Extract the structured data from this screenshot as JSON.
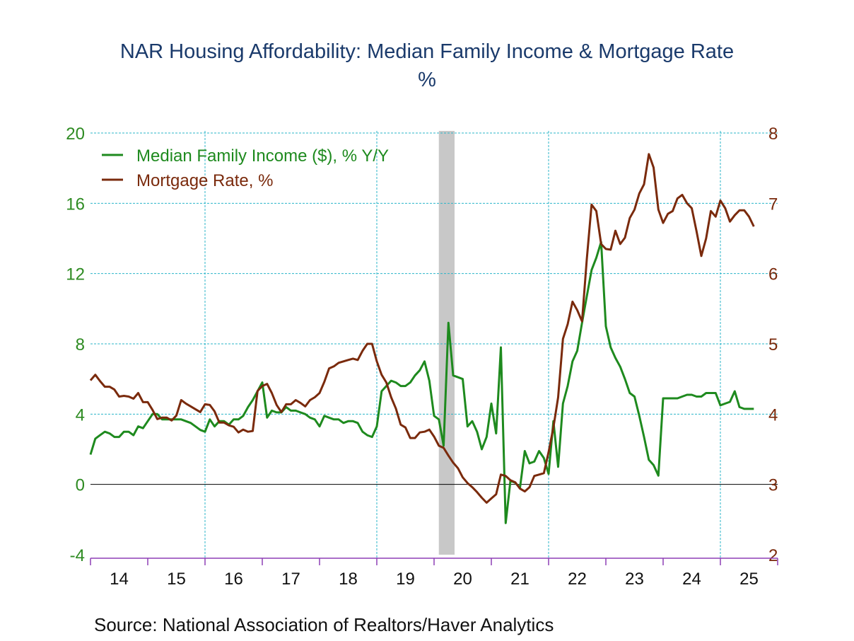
{
  "chart_data": {
    "type": "line",
    "title": "NAR Housing Affordability: Median Family Income & Mortgage Rate",
    "subtitle": "%",
    "source": "Source:  National Association of Realtors/Haver Analytics",
    "x_start": "2014-01",
    "frequency": "monthly",
    "x_tick_labels": [
      "14",
      "15",
      "16",
      "17",
      "18",
      "19",
      "20",
      "21",
      "22",
      "23",
      "24",
      "25"
    ],
    "y_left": {
      "ticks": [
        "20",
        "16",
        "12",
        "8",
        "4",
        "0",
        "-4"
      ],
      "ylim": [
        -4,
        20
      ],
      "color": "#2e8b22"
    },
    "y_right": {
      "ticks": [
        "8",
        "7",
        "6",
        "5",
        "4",
        "3",
        "2"
      ],
      "ylim": [
        2,
        8
      ],
      "color": "#7a2a0c"
    },
    "recession": {
      "start": "2020-02",
      "end": "2020-04",
      "color": "#c8c8c8"
    },
    "grid": true,
    "legend_position": "top-left",
    "series": [
      {
        "name": "Median Family Income ($), % Y/Y",
        "axis": "left",
        "color": "#1e8a1e",
        "values": [
          1.7,
          2.6,
          2.8,
          3.0,
          2.9,
          2.7,
          2.7,
          3.0,
          3.0,
          2.8,
          3.3,
          3.2,
          3.6,
          4.0,
          4.0,
          3.7,
          3.7,
          3.7,
          3.7,
          3.7,
          3.6,
          3.5,
          3.3,
          3.1,
          3.0,
          3.7,
          3.3,
          3.6,
          3.6,
          3.4,
          3.7,
          3.7,
          3.9,
          4.4,
          4.8,
          5.3,
          5.8,
          3.8,
          4.2,
          4.1,
          4.1,
          4.4,
          4.2,
          4.2,
          4.1,
          4.0,
          3.8,
          3.7,
          3.3,
          3.9,
          3.8,
          3.7,
          3.7,
          3.5,
          3.6,
          3.6,
          3.5,
          3.0,
          2.8,
          2.7,
          3.3,
          5.3,
          5.6,
          5.9,
          5.8,
          5.6,
          5.6,
          5.8,
          6.2,
          6.5,
          7.0,
          5.9,
          3.9,
          3.7,
          2.2,
          9.2,
          6.2,
          6.1,
          6.0,
          3.3,
          3.6,
          3.0,
          2.0,
          2.7,
          4.6,
          2.9,
          7.8,
          -2.2,
          0.2,
          0.1,
          -0.2,
          1.9,
          1.2,
          1.3,
          1.9,
          1.5,
          0.6,
          3.6,
          1.0,
          4.6,
          5.6,
          7.0,
          7.6,
          9.2,
          10.7,
          12.2,
          12.9,
          13.8,
          9.0,
          7.8,
          7.2,
          6.7,
          6.0,
          5.2,
          5.0,
          3.9,
          2.7,
          1.4,
          1.1,
          0.5,
          4.9,
          4.9,
          4.9,
          4.9,
          5.0,
          5.1,
          5.1,
          5.0,
          5.0,
          5.2,
          5.2,
          5.2,
          4.5,
          4.6,
          4.7,
          5.3,
          4.4,
          4.3,
          4.3,
          4.3
        ]
      },
      {
        "name": "Mortgage Rate, %",
        "axis": "right",
        "color": "#7a2a0c",
        "values": [
          4.48,
          4.56,
          4.47,
          4.39,
          4.39,
          4.35,
          4.25,
          4.26,
          4.25,
          4.22,
          4.3,
          4.17,
          4.17,
          4.06,
          3.93,
          3.95,
          3.95,
          3.91,
          3.98,
          4.2,
          4.15,
          4.11,
          4.07,
          4.03,
          4.14,
          4.13,
          4.04,
          3.88,
          3.88,
          3.84,
          3.82,
          3.74,
          3.78,
          3.75,
          3.76,
          4.33,
          4.4,
          4.43,
          4.3,
          4.13,
          4.03,
          4.14,
          4.14,
          4.2,
          4.16,
          4.11,
          4.2,
          4.24,
          4.3,
          4.46,
          4.65,
          4.68,
          4.73,
          4.75,
          4.77,
          4.79,
          4.77,
          4.9,
          5.0,
          5.0,
          4.75,
          4.56,
          4.45,
          4.24,
          4.08,
          3.85,
          3.81,
          3.66,
          3.66,
          3.74,
          3.75,
          3.78,
          3.68,
          3.55,
          3.52,
          3.41,
          3.31,
          3.23,
          3.1,
          3.02,
          2.96,
          2.89,
          2.81,
          2.74,
          2.8,
          2.86,
          3.14,
          3.12,
          3.06,
          3.03,
          2.94,
          2.9,
          2.96,
          3.12,
          3.14,
          3.16,
          3.46,
          3.81,
          4.24,
          5.07,
          5.28,
          5.6,
          5.48,
          5.32,
          6.2,
          6.98,
          6.89,
          6.42,
          6.35,
          6.34,
          6.61,
          6.42,
          6.51,
          6.79,
          6.91,
          7.14,
          7.27,
          7.7,
          7.51,
          6.91,
          6.72,
          6.85,
          6.89,
          7.07,
          7.12,
          7.0,
          6.93,
          6.6,
          6.25,
          6.5,
          6.89,
          6.81,
          7.04,
          6.93,
          6.74,
          6.83,
          6.9,
          6.9,
          6.81,
          6.67
        ]
      }
    ]
  }
}
